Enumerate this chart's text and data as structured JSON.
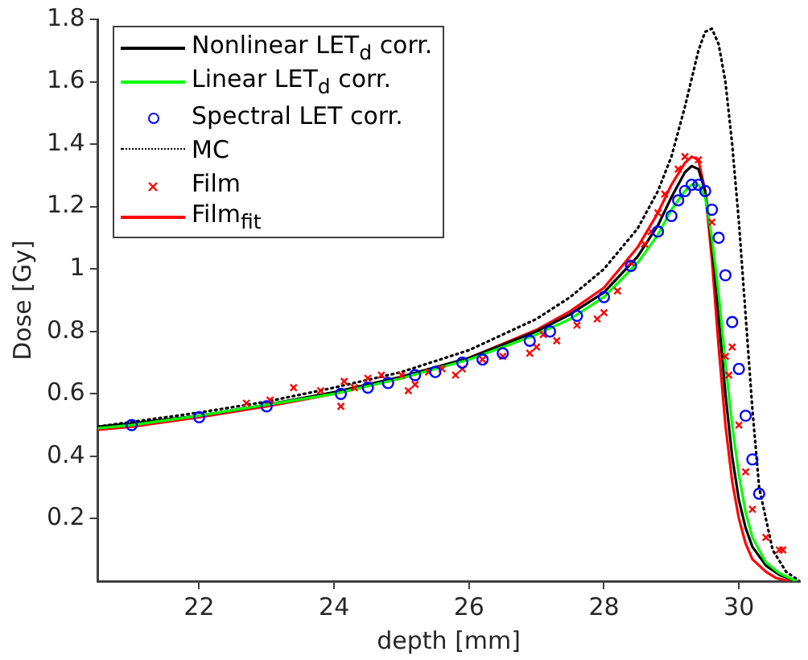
{
  "chart_data": {
    "type": "line",
    "xlabel": "depth [mm]",
    "ylabel": "Dose [Gy]",
    "xlim": [
      20.5,
      30.9
    ],
    "xticks": [
      22,
      24,
      26,
      28,
      30
    ],
    "ylim": [
      0,
      1.8
    ],
    "yticks": [
      0.2,
      0.4,
      0.6,
      0.8,
      1,
      1.2,
      1.4,
      1.6,
      1.8
    ],
    "grid": false,
    "legend": "top left",
    "series": [
      {
        "name": "Nonlinear LET$_{d}$ corr.",
        "type": "line",
        "color": "#000000",
        "line_style": "solid",
        "marker": "none",
        "x": [
          20.5,
          21,
          22,
          23,
          24,
          25,
          26,
          27,
          27.5,
          28,
          28.5,
          28.8,
          29.0,
          29.2,
          29.3,
          29.4,
          29.5,
          29.6,
          29.7,
          29.8,
          29.9,
          30.0,
          30.1,
          30.2,
          30.4,
          30.6,
          30.85
        ],
        "values": [
          0.495,
          0.505,
          0.53,
          0.565,
          0.605,
          0.655,
          0.715,
          0.8,
          0.855,
          0.925,
          1.04,
          1.14,
          1.23,
          1.31,
          1.33,
          1.32,
          1.25,
          1.08,
          0.85,
          0.6,
          0.4,
          0.26,
          0.17,
          0.11,
          0.05,
          0.02,
          0
        ]
      },
      {
        "name": "Linear LET$_{d}$ corr.",
        "type": "line",
        "color": "#00ff00",
        "line_style": "solid",
        "marker": "none",
        "x": [
          20.5,
          21,
          22,
          23,
          24,
          25,
          26,
          27,
          27.5,
          28,
          28.5,
          28.8,
          29.0,
          29.2,
          29.3,
          29.4,
          29.5,
          29.6,
          29.7,
          29.8,
          29.9,
          30.0,
          30.1,
          30.2,
          30.4,
          30.6,
          30.85
        ],
        "values": [
          0.49,
          0.5,
          0.53,
          0.565,
          0.6,
          0.65,
          0.71,
          0.79,
          0.84,
          0.91,
          1.02,
          1.11,
          1.19,
          1.25,
          1.27,
          1.27,
          1.23,
          1.1,
          0.92,
          0.7,
          0.5,
          0.34,
          0.22,
          0.14,
          0.06,
          0.025,
          0
        ]
      },
      {
        "name": "Spectral LET corr.",
        "type": "scatter",
        "color": "#0000ff",
        "marker": "circle",
        "x": [
          21,
          22,
          23,
          24.1,
          24.5,
          24.8,
          25.2,
          25.5,
          25.9,
          26.2,
          26.5,
          26.9,
          27.2,
          27.6,
          28,
          28.4,
          28.8,
          29,
          29.1,
          29.2,
          29.3,
          29.4,
          29.5,
          29.6,
          29.7,
          29.8,
          29.9,
          30,
          30.1,
          30.2,
          30.3
        ],
        "values": [
          0.5,
          0.525,
          0.56,
          0.6,
          0.62,
          0.635,
          0.66,
          0.67,
          0.7,
          0.71,
          0.73,
          0.77,
          0.8,
          0.85,
          0.91,
          1.01,
          1.12,
          1.17,
          1.22,
          1.25,
          1.27,
          1.27,
          1.25,
          1.19,
          1.1,
          0.98,
          0.83,
          0.68,
          0.53,
          0.39,
          0.28
        ]
      },
      {
        "name": "MC",
        "type": "line",
        "color": "#000000",
        "line_style": "dotted",
        "marker": "none",
        "x": [
          20.5,
          21,
          22,
          23,
          24,
          25,
          26,
          27,
          27.5,
          28,
          28.5,
          28.8,
          29.0,
          29.2,
          29.4,
          29.5,
          29.6,
          29.7,
          29.8,
          29.9,
          30.0,
          30.1,
          30.2,
          30.3,
          30.5,
          30.7,
          30.9
        ],
        "values": [
          0.495,
          0.51,
          0.54,
          0.575,
          0.62,
          0.67,
          0.74,
          0.84,
          0.91,
          1.0,
          1.13,
          1.25,
          1.36,
          1.52,
          1.7,
          1.76,
          1.77,
          1.72,
          1.6,
          1.4,
          1.15,
          0.85,
          0.55,
          0.3,
          0.1,
          0.03,
          0
        ]
      },
      {
        "name": "Film",
        "type": "scatter",
        "color": "#ff0000",
        "marker": "cross",
        "x": [
          22.7,
          23.05,
          23.4,
          23.8,
          24.1,
          24.15,
          24.3,
          24.5,
          24.7,
          25.0,
          25.1,
          25.2,
          25.4,
          25.6,
          25.8,
          25.9,
          26.2,
          26.5,
          26.9,
          27.0,
          27.1,
          27.3,
          27.6,
          27.9,
          28.0,
          28.2,
          28.4,
          28.6,
          28.7,
          28.8,
          28.9,
          29.1,
          29.2,
          29.4,
          29.6,
          29.8,
          29.85,
          29.9,
          30.0,
          30.1,
          30.2,
          30.4,
          30.6,
          30.65
        ],
        "values": [
          0.57,
          0.58,
          0.62,
          0.61,
          0.56,
          0.64,
          0.62,
          0.65,
          0.66,
          0.66,
          0.61,
          0.63,
          0.67,
          0.68,
          0.66,
          0.68,
          0.71,
          0.72,
          0.73,
          0.75,
          0.79,
          0.77,
          0.82,
          0.84,
          0.86,
          0.93,
          1.02,
          1.08,
          1.12,
          1.18,
          1.24,
          1.32,
          1.36,
          1.35,
          1.15,
          0.72,
          0.66,
          0.75,
          0.5,
          0.35,
          0.23,
          0.14,
          0.1,
          0.1
        ]
      },
      {
        "name": "Film$_{fit}$",
        "type": "line",
        "color": "#ff0000",
        "line_style": "solid",
        "marker": "none",
        "x": [
          20.5,
          21,
          22,
          23,
          24,
          25,
          26,
          27,
          27.5,
          28,
          28.5,
          28.8,
          29.0,
          29.2,
          29.3,
          29.4,
          29.5,
          29.6,
          29.7,
          29.8,
          29.9,
          30.0,
          30.1,
          30.2,
          30.4,
          30.55,
          30.75
        ],
        "values": [
          0.485,
          0.495,
          0.525,
          0.56,
          0.6,
          0.65,
          0.715,
          0.805,
          0.865,
          0.94,
          1.07,
          1.18,
          1.27,
          1.34,
          1.36,
          1.35,
          1.25,
          1.03,
          0.75,
          0.5,
          0.32,
          0.2,
          0.12,
          0.07,
          0.03,
          0.01,
          0
        ]
      }
    ]
  }
}
